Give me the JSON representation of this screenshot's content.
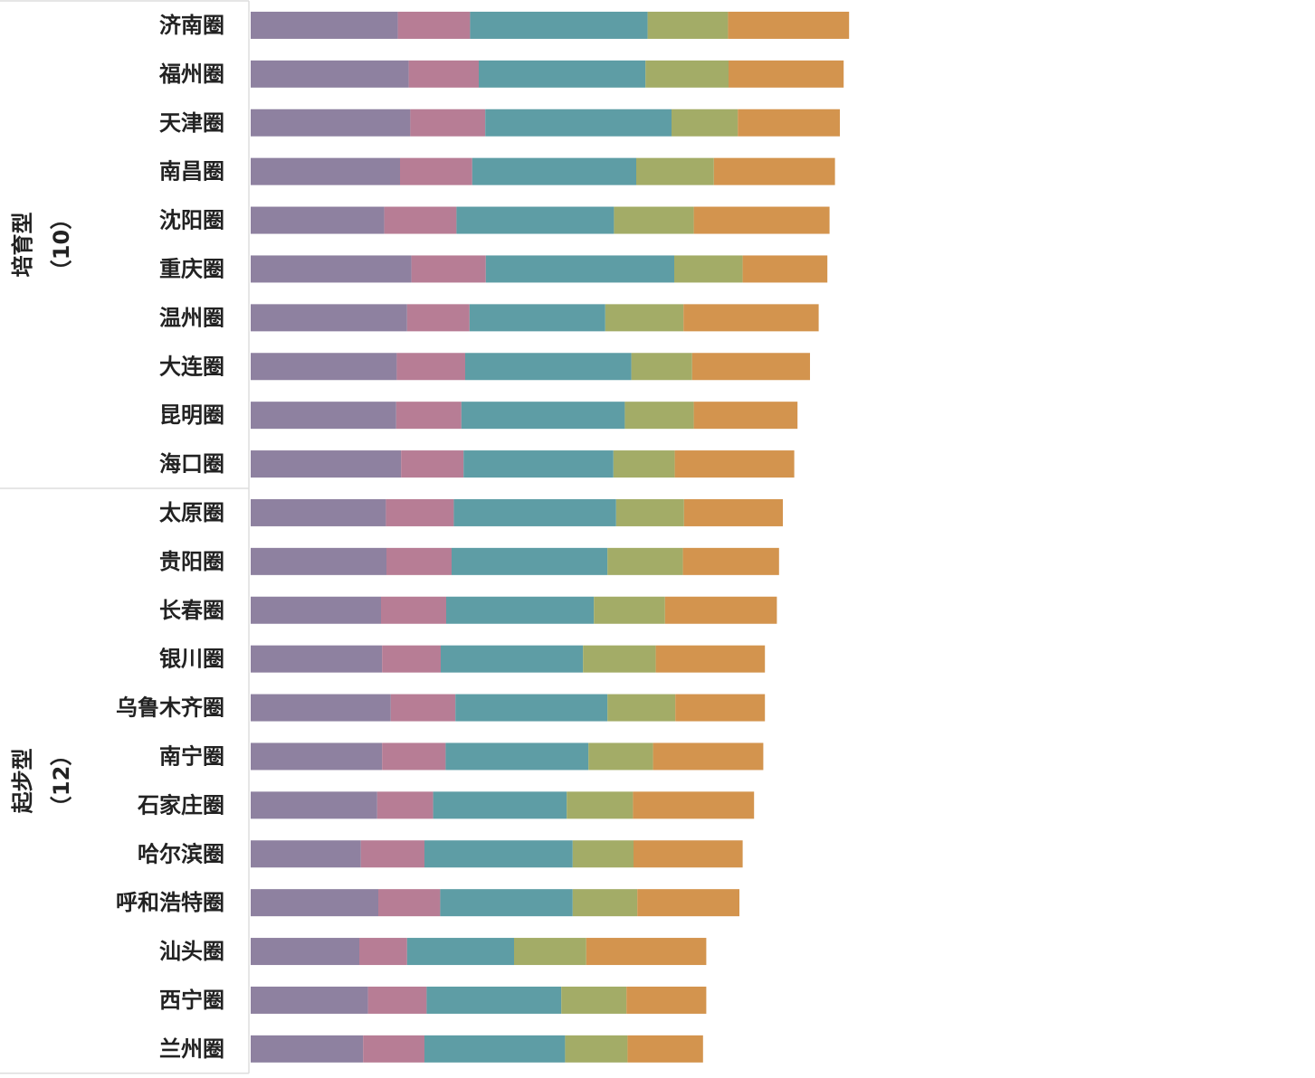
{
  "chart_data": {
    "type": "bar",
    "orientation": "horizontal",
    "stacked": true,
    "legend": "none",
    "grid": false,
    "colors": [
      "#8E81A0",
      "#B77D95",
      "#5E9DA5",
      "#A3AC67",
      "#D3944E"
    ],
    "groups": [
      {
        "name": "培育型",
        "count": "（10）",
        "categories": [
          "济南圈",
          "福州圈",
          "天津圈",
          "南昌圈",
          "沈阳圈",
          "重庆圈",
          "温州圈",
          "大连圈",
          "昆明圈",
          "海口圈"
        ]
      },
      {
        "name": "起步型",
        "count": "（12）",
        "categories": [
          "太原圈",
          "贵阳圈",
          "长春圈",
          "银川圈",
          "乌鲁木齐圈",
          "南宁圈",
          "石家庄圈",
          "哈尔滨圈",
          "呼和浩特圈",
          "汕头圈",
          "西宁圈",
          "兰州圈"
        ]
      }
    ],
    "categories": [
      "济南圈",
      "福州圈",
      "天津圈",
      "南昌圈",
      "沈阳圈",
      "重庆圈",
      "温州圈",
      "大连圈",
      "昆明圈",
      "海口圈",
      "太原圈",
      "贵阳圈",
      "长春圈",
      "银川圈",
      "乌鲁木齐圈",
      "南宁圈",
      "石家庄圈",
      "哈尔滨圈",
      "呼和浩特圈",
      "汕头圈",
      "西宁圈",
      "兰州圈"
    ],
    "series": [
      {
        "values": [
          27.1,
          29.1,
          29.4,
          27.5,
          24.6,
          29.6,
          28.8,
          26.9,
          26.8,
          27.7,
          24.9,
          25.0,
          24.0,
          24.2,
          25.8,
          24.2,
          23.3,
          20.3,
          23.5,
          20.0,
          21.6,
          20.7
        ]
      },
      {
        "values": [
          13.3,
          12.9,
          13.8,
          13.3,
          13.3,
          13.7,
          11.5,
          12.6,
          12.0,
          11.5,
          12.5,
          12.0,
          12.0,
          10.8,
          11.9,
          11.7,
          10.3,
          11.7,
          11.4,
          8.8,
          10.8,
          11.3
        ]
      },
      {
        "values": [
          32.7,
          30.7,
          34.3,
          30.2,
          29.0,
          34.7,
          25.0,
          30.6,
          30.1,
          27.6,
          29.9,
          28.7,
          27.2,
          26.2,
          28.0,
          26.3,
          24.6,
          27.3,
          24.4,
          19.7,
          24.8,
          25.9
        ]
      },
      {
        "values": [
          14.8,
          15.3,
          12.2,
          14.3,
          14.7,
          12.6,
          14.4,
          11.2,
          12.7,
          11.3,
          12.5,
          13.9,
          13.1,
          13.4,
          12.5,
          11.9,
          12.2,
          11.2,
          11.9,
          13.3,
          12.0,
          11.5
        ]
      },
      {
        "values": [
          22.3,
          21.2,
          18.8,
          22.3,
          25.0,
          15.6,
          24.9,
          21.7,
          19.1,
          22.0,
          18.2,
          17.7,
          20.6,
          20.1,
          16.5,
          20.3,
          22.3,
          20.1,
          18.8,
          22.1,
          14.7,
          13.9
        ]
      }
    ]
  }
}
